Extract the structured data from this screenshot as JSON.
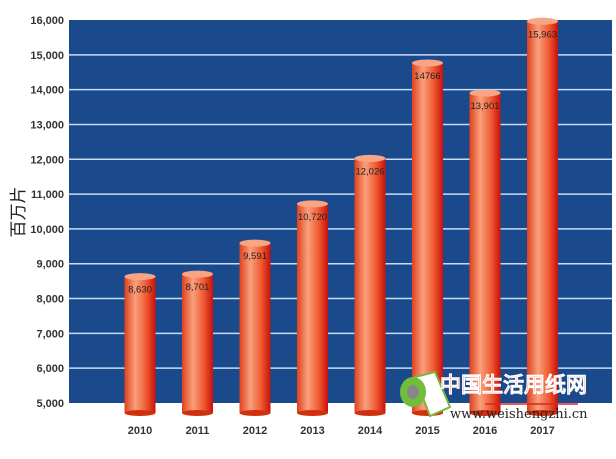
{
  "chart_data": {
    "type": "bar",
    "title": "",
    "xlabel": "",
    "ylabel": "百万片",
    "categories": [
      "2010",
      "2011",
      "2012",
      "2013",
      "2014",
      "2015",
      "2016",
      "2017"
    ],
    "values": [
      8630,
      8701,
      9591,
      10720,
      12026,
      14766,
      13901,
      15963
    ],
    "value_labels": [
      "8,630",
      "8,701",
      "9,591",
      "10,720",
      "12,026",
      "14766",
      "13,901",
      "15,963"
    ],
    "ylim": [
      5000,
      16000
    ],
    "yticks": [
      "5,000",
      "6,000",
      "7,000",
      "8,000",
      "9,000",
      "10,000",
      "11,000",
      "12,000",
      "13,000",
      "14,000",
      "15,000",
      "16,000"
    ],
    "grid": true,
    "colors": {
      "background": "#1a4a8c",
      "grid": "#c9dcf5",
      "bar": "#f0603a",
      "bar_edge": "#c8160c"
    }
  },
  "watermark": {
    "title": "中国生活用纸网",
    "url": "www.weishengzhi.cn"
  }
}
